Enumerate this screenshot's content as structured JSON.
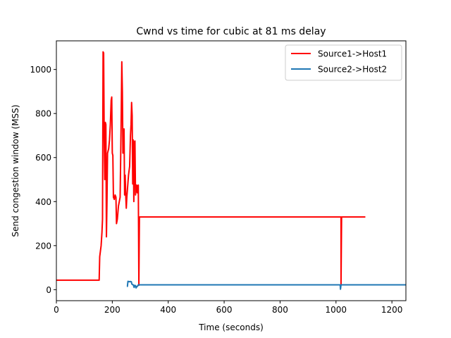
{
  "chart_data": {
    "type": "line",
    "title": "Cwnd vs time for cubic at 81 ms delay",
    "xlabel": "Time (seconds)",
    "ylabel": "Send congestion window (MSS)",
    "xlim": [
      0,
      1250
    ],
    "ylim": [
      -50,
      1130
    ],
    "xticks": [
      0,
      200,
      400,
      600,
      800,
      1000,
      1200
    ],
    "yticks": [
      0,
      200,
      400,
      600,
      800,
      1000
    ],
    "legend_position": "top-right",
    "grid": false,
    "series": [
      {
        "name": "Source1->Host1",
        "color": "#ff0000",
        "points": [
          [
            0,
            43
          ],
          [
            153,
            43
          ],
          [
            155,
            150
          ],
          [
            160,
            200
          ],
          [
            163,
            260
          ],
          [
            165,
            320
          ],
          [
            167,
            1080
          ],
          [
            169,
            1075
          ],
          [
            171,
            700
          ],
          [
            173,
            500
          ],
          [
            175,
            760
          ],
          [
            177,
            750
          ],
          [
            179,
            240
          ],
          [
            181,
            400
          ],
          [
            183,
            620
          ],
          [
            187,
            640
          ],
          [
            190,
            680
          ],
          [
            193,
            750
          ],
          [
            196,
            860
          ],
          [
            198,
            875
          ],
          [
            200,
            620
          ],
          [
            202,
            610
          ],
          [
            204,
            420
          ],
          [
            207,
            410
          ],
          [
            210,
            430
          ],
          [
            213,
            420
          ],
          [
            215,
            300
          ],
          [
            218,
            320
          ],
          [
            222,
            380
          ],
          [
            228,
            420
          ],
          [
            230,
            600
          ],
          [
            232,
            800
          ],
          [
            234,
            1035
          ],
          [
            236,
            900
          ],
          [
            238,
            620
          ],
          [
            240,
            720
          ],
          [
            242,
            730
          ],
          [
            244,
            430
          ],
          [
            246,
            520
          ],
          [
            248,
            430
          ],
          [
            250,
            370
          ],
          [
            252,
            420
          ],
          [
            255,
            470
          ],
          [
            258,
            520
          ],
          [
            262,
            560
          ],
          [
            265,
            700
          ],
          [
            267,
            750
          ],
          [
            269,
            850
          ],
          [
            271,
            790
          ],
          [
            273,
            480
          ],
          [
            275,
            680
          ],
          [
            277,
            400
          ],
          [
            279,
            670
          ],
          [
            281,
            675
          ],
          [
            283,
            430
          ],
          [
            285,
            470
          ],
          [
            287,
            475
          ],
          [
            289,
            440
          ],
          [
            291,
            470
          ],
          [
            293,
            475
          ],
          [
            295,
            20
          ],
          [
            297,
            330
          ],
          [
            1018,
            330
          ],
          [
            1018,
            25
          ],
          [
            1020,
            330
          ],
          [
            1105,
            330
          ]
        ]
      },
      {
        "name": "Source2->Host2",
        "color": "#1f77b4",
        "points": [
          [
            252,
            15
          ],
          [
            254,
            15
          ],
          [
            256,
            38
          ],
          [
            260,
            36
          ],
          [
            264,
            37
          ],
          [
            268,
            36
          ],
          [
            270,
            25
          ],
          [
            274,
            23
          ],
          [
            276,
            18
          ],
          [
            278,
            10
          ],
          [
            280,
            20
          ],
          [
            283,
            18
          ],
          [
            285,
            8
          ],
          [
            288,
            15
          ],
          [
            290,
            15
          ],
          [
            293,
            22
          ],
          [
            296,
            22
          ],
          [
            1015,
            22
          ],
          [
            1016,
            2
          ],
          [
            1018,
            22
          ],
          [
            1250,
            22
          ]
        ]
      }
    ]
  }
}
